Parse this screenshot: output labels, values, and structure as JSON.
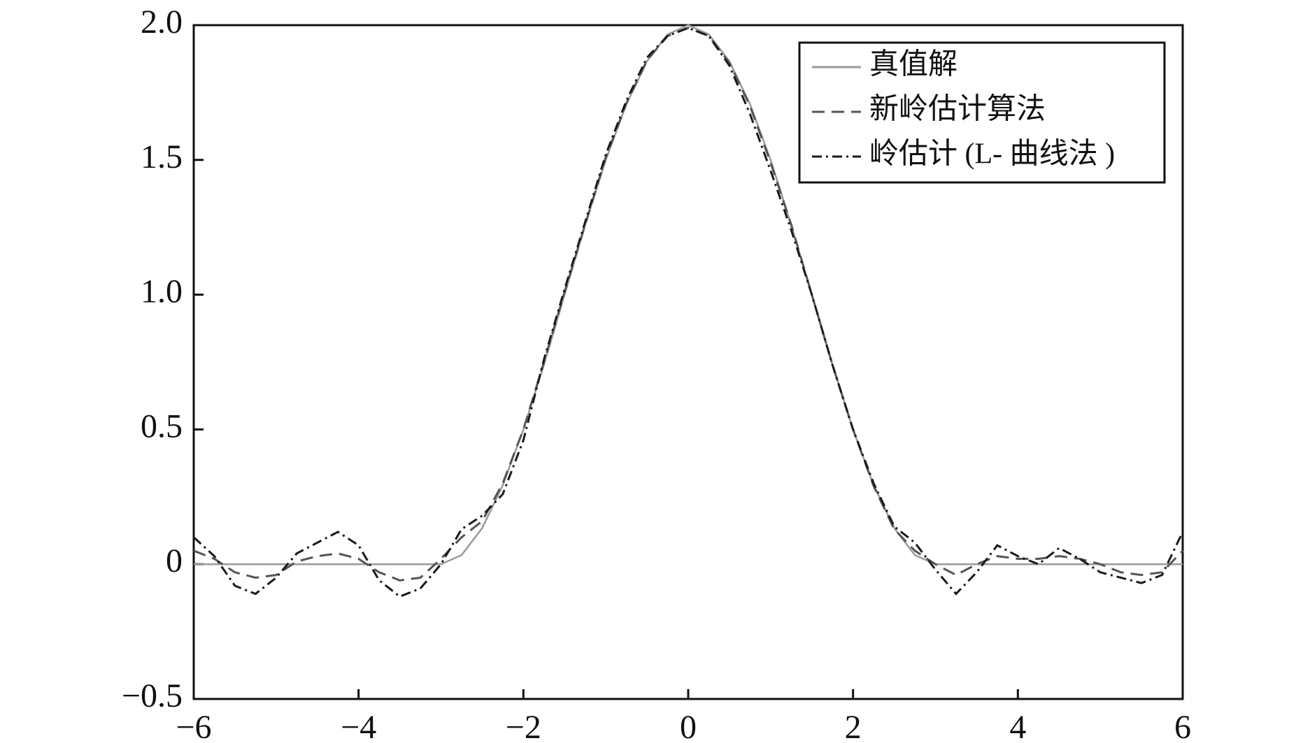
{
  "chart_data": {
    "type": "line",
    "x": [
      -6,
      -5.75,
      -5.5,
      -5.25,
      -5,
      -4.75,
      -4.5,
      -4.25,
      -4,
      -3.75,
      -3.5,
      -3.25,
      -3,
      -2.75,
      -2.5,
      -2.25,
      -2,
      -1.75,
      -1.5,
      -1.25,
      -1,
      -0.75,
      -0.5,
      -0.25,
      0,
      0.25,
      0.5,
      0.75,
      1,
      1.25,
      1.5,
      1.75,
      2,
      2.25,
      2.5,
      2.75,
      3,
      3.25,
      3.5,
      3.75,
      4,
      4.25,
      4.5,
      4.75,
      5,
      5.25,
      5.5,
      5.75,
      6
    ],
    "series": [
      {
        "name": "真值解",
        "color": "#9a9a9a",
        "dash": "none",
        "values": [
          0,
          0,
          0,
          0,
          0,
          0,
          0,
          0,
          0,
          0,
          0,
          0,
          0,
          0.034,
          0.134,
          0.293,
          0.5,
          0.741,
          1.0,
          1.259,
          1.5,
          1.707,
          1.866,
          1.966,
          2,
          1.966,
          1.866,
          1.707,
          1.5,
          1.259,
          1.0,
          0.741,
          0.5,
          0.293,
          0.134,
          0.034,
          0,
          0,
          0,
          0,
          0,
          0,
          0,
          0,
          0,
          0,
          0,
          0,
          0
        ]
      },
      {
        "name": "新岭估计算法",
        "color": "#555555",
        "dash": "18 10",
        "values": [
          0.05,
          0.02,
          -0.03,
          -0.05,
          -0.04,
          0.01,
          0.03,
          0.04,
          0.02,
          -0.03,
          -0.06,
          -0.05,
          0.02,
          0.1,
          0.16,
          0.3,
          0.5,
          0.75,
          1.01,
          1.26,
          1.51,
          1.71,
          1.87,
          1.96,
          1.99,
          1.96,
          1.86,
          1.7,
          1.49,
          1.26,
          1.0,
          0.74,
          0.5,
          0.29,
          0.13,
          0.05,
          0.0,
          -0.04,
          0.0,
          0.03,
          0.02,
          0.02,
          0.03,
          0.02,
          0.0,
          -0.03,
          -0.04,
          -0.03,
          0.05
        ]
      },
      {
        "name": "岭估计 (L- 曲线法 )",
        "color": "#1a1a1a",
        "dash": "14 6 3 6",
        "values": [
          0.1,
          0.03,
          -0.08,
          -0.11,
          -0.05,
          0.04,
          0.08,
          0.12,
          0.07,
          -0.06,
          -0.12,
          -0.09,
          0.0,
          0.13,
          0.18,
          0.26,
          0.46,
          0.76,
          1.02,
          1.27,
          1.52,
          1.72,
          1.88,
          1.96,
          1.99,
          1.96,
          1.85,
          1.67,
          1.46,
          1.24,
          1.0,
          0.74,
          0.5,
          0.3,
          0.14,
          0.08,
          -0.02,
          -0.11,
          -0.03,
          0.07,
          0.03,
          0.0,
          0.06,
          0.02,
          -0.03,
          -0.05,
          -0.07,
          -0.04,
          0.12
        ]
      }
    ],
    "xlim": [
      -6,
      6
    ],
    "ylim": [
      -0.5,
      2.0
    ],
    "xticks": [
      {
        "value": -6,
        "label": "−6"
      },
      {
        "value": -4,
        "label": "−4"
      },
      {
        "value": -2,
        "label": "−2"
      },
      0,
      2,
      4,
      6
    ],
    "yticks": [
      {
        "value": -0.5,
        "label": "−0.5"
      },
      0,
      {
        "value": 0.5,
        "label": "0.5"
      },
      {
        "value": 1.0,
        "label": "1.0"
      },
      {
        "value": 1.5,
        "label": "1.5"
      },
      {
        "value": 2.0,
        "label": "2.0"
      }
    ],
    "legend": "upper-right"
  }
}
